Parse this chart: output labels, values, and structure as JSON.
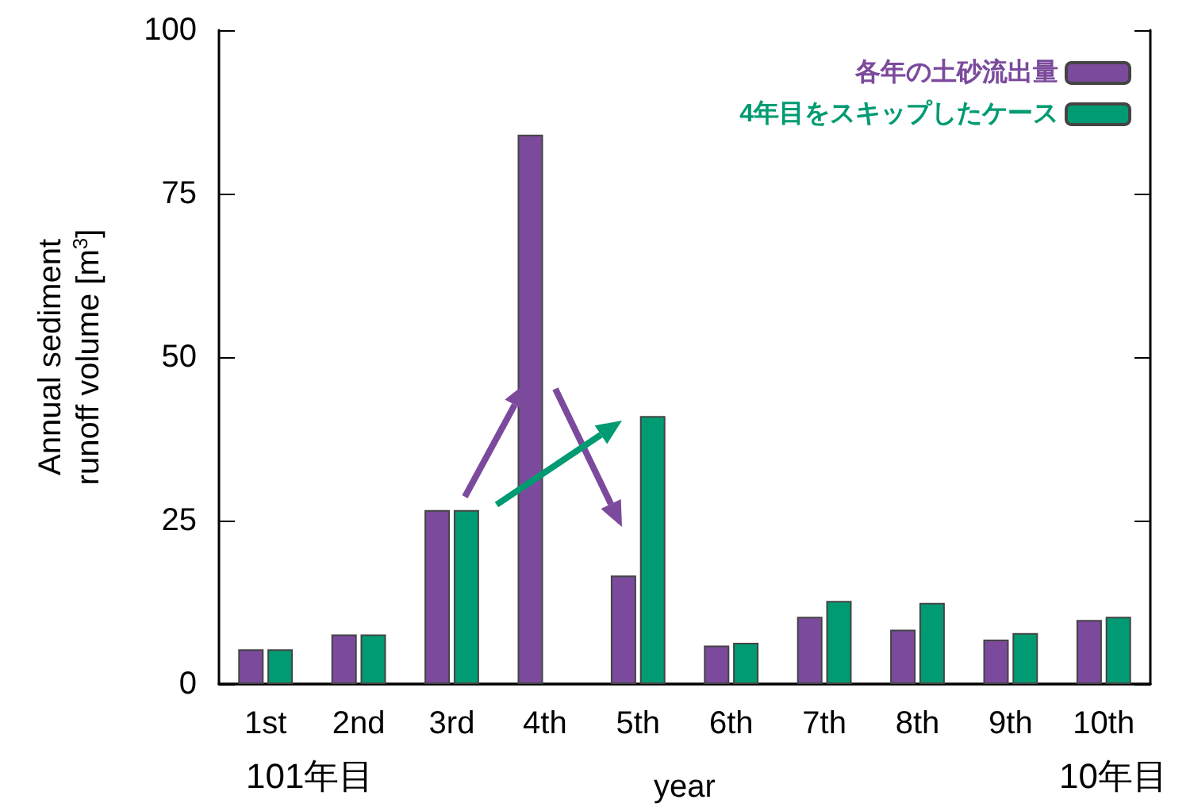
{
  "chart_data": {
    "type": "bar",
    "ylabel": "Annual sediment\nrunoff volume [m$^{3}$]",
    "xlabel": "year",
    "categories": [
      "1st",
      "2nd",
      "3rd",
      "4th",
      "5th",
      "6th",
      "7th",
      "8th",
      "9th",
      "10th"
    ],
    "series": [
      {
        "name": "各年の土砂流出量",
        "color": "#7b4a9c",
        "values": [
          5.3,
          7.6,
          26.6,
          84,
          16.6,
          5.9,
          10.3,
          8.3,
          6.8,
          9.8
        ]
      },
      {
        "name": "4年目をスキップしたケース",
        "color": "#009b72",
        "values": [
          5.3,
          7.6,
          26.6,
          null,
          41,
          6.3,
          12.7,
          12.4,
          7.8,
          10.3
        ]
      }
    ],
    "ylim": [
      0,
      100
    ],
    "yticks": [
      0,
      25,
      50,
      75,
      100
    ],
    "grid": false,
    "legend": "top right",
    "annotations": [
      "101年目",
      "10年目"
    ]
  }
}
